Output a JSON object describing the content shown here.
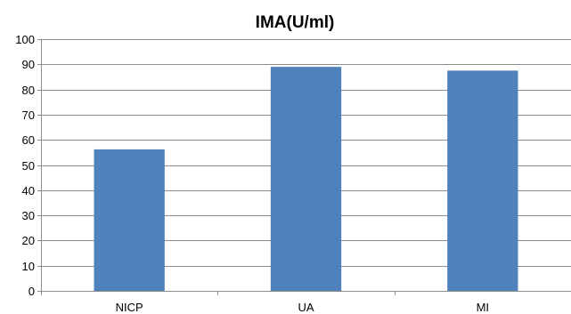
{
  "chart_data": {
    "type": "bar",
    "title": "IMA(U/ml)",
    "categories": [
      "NICP",
      "UA",
      "MI"
    ],
    "values": [
      56.2,
      89,
      87.5
    ],
    "ylim": [
      0,
      100
    ],
    "yticks": [
      0,
      10,
      20,
      30,
      40,
      50,
      60,
      70,
      80,
      90,
      100
    ],
    "xlabel": "",
    "ylabel": "",
    "grid": true,
    "legend": "none",
    "colors": {
      "bar": "#4f81bd",
      "grid": "#8c8c8c",
      "text": "#000000"
    }
  }
}
